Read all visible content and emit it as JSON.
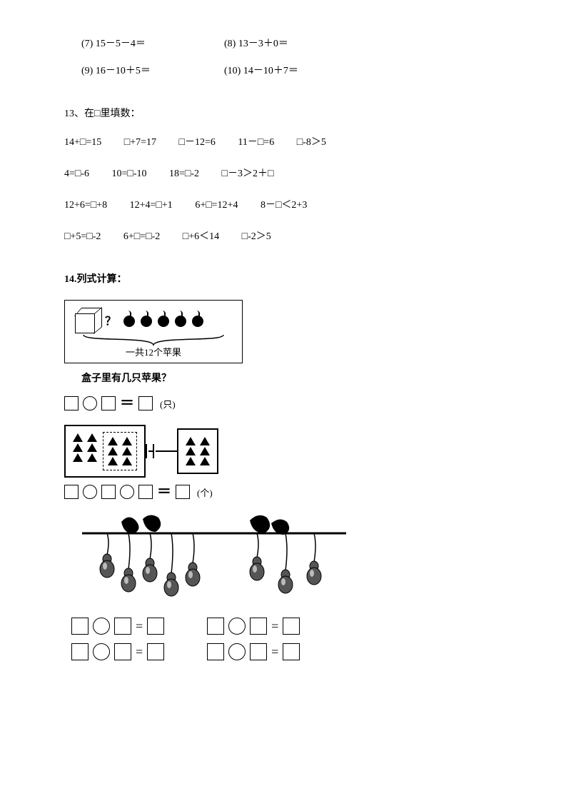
{
  "q12": {
    "items": [
      {
        "num": "(7)",
        "expr": "15－5－4＝"
      },
      {
        "num": "(8)",
        "expr": "13－3＋0＝"
      },
      {
        "num": "(9)",
        "expr": "16－10＋5＝"
      },
      {
        "num": "(10)",
        "expr": "14－10＋7＝"
      }
    ]
  },
  "q13": {
    "title": "13、在□里填数：",
    "rows": [
      [
        "14+□=15",
        "□+7=17",
        "□－12=6",
        "11－□=6",
        "□-8＞5"
      ],
      [
        "4=□-6",
        "10=□-10",
        "18=□-2",
        "□－3＞2＋□"
      ],
      [
        "12+6=□+8",
        "12+4=□+1",
        "6+□=12+4",
        "8－□＜2+3"
      ],
      [
        "□+5=□-2",
        "6+□=□-2",
        "□+6＜14",
        "□-2＞5"
      ]
    ]
  },
  "q14": {
    "title": "14.列式计算：",
    "problem1": {
      "visible_apples": 5,
      "brace_label": "一共12个苹果",
      "question": "盒子里有几只苹果？",
      "unit": "(只)"
    },
    "problem2": {
      "left_cols": 4,
      "left_rows": 3,
      "dashed_cols": 2,
      "right_cols": 2,
      "right_rows": 3,
      "unit": "(个)"
    },
    "problem3": {
      "left_gourds": 5,
      "right_gourds": 3,
      "eq_sign": "="
    }
  },
  "colors": {
    "text": "#000000",
    "bg": "#ffffff",
    "line": "#000000"
  }
}
